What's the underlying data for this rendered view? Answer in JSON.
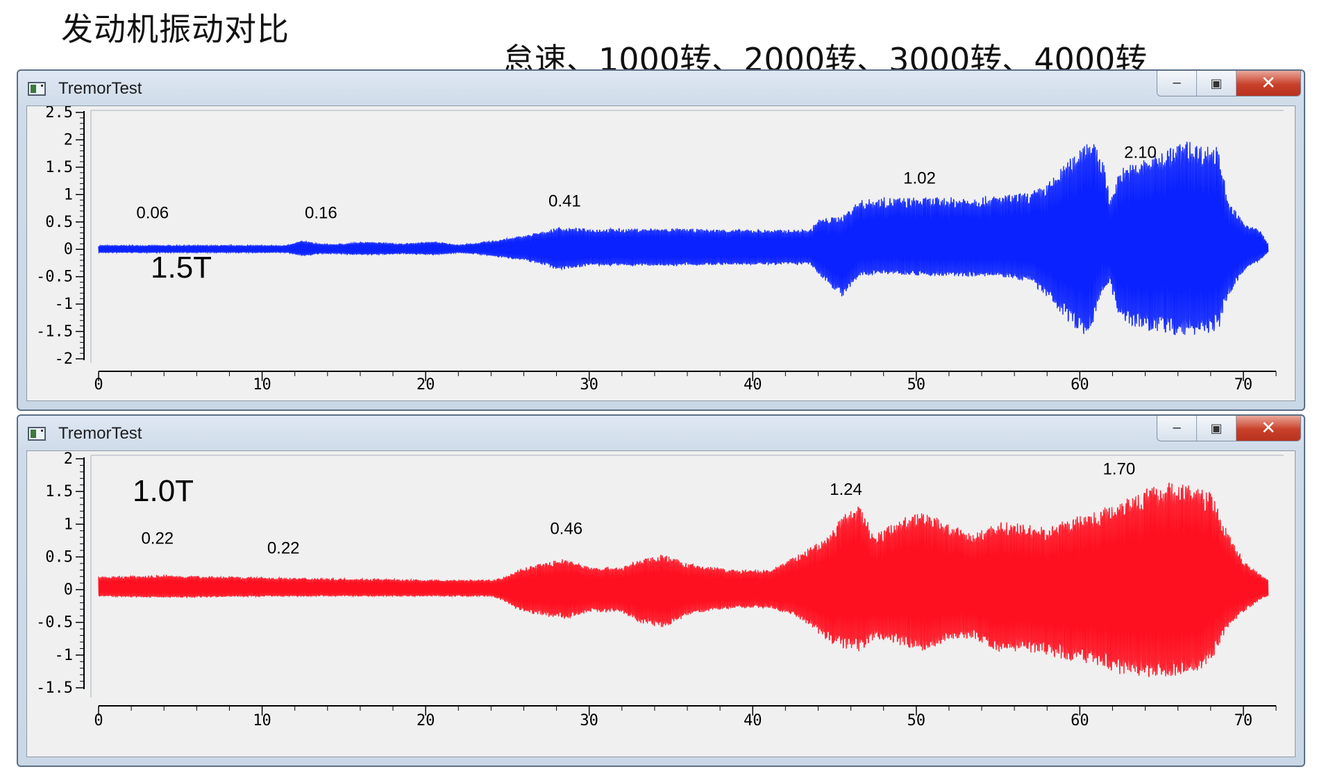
{
  "slide": {
    "title": "发动机振动对比",
    "subtitle": "怠速、1000转、2000转、3000转、4000转"
  },
  "windows": [
    {
      "title": "TremorTest",
      "controls": [
        "minimize-icon",
        "restore-icon",
        "close-icon"
      ]
    },
    {
      "title": "TremorTest",
      "controls": [
        "minimize-icon",
        "restore-icon",
        "close-icon"
      ]
    }
  ],
  "colors": {
    "series_1_5T": "#0a22ff",
    "series_1_0T": "#ff1020"
  },
  "chart_data": [
    {
      "type": "area",
      "label": "1.5T",
      "color": "#0a22ff",
      "xlim": [
        0,
        72
      ],
      "ylim": [
        -2,
        2.5
      ],
      "x_ticks": [
        0,
        10,
        20,
        30,
        40,
        50,
        60,
        70
      ],
      "y_ticks": [
        2.5,
        2,
        1.5,
        1,
        0.5,
        0,
        -0.5,
        -1,
        -1.5,
        -2
      ],
      "envelope": {
        "x": [
          0,
          11.5,
          12.5,
          13.5,
          14.5,
          16.5,
          18.5,
          20.5,
          22,
          23,
          24,
          26,
          27.5,
          28,
          30,
          35,
          40,
          43.5,
          44,
          45.5,
          46.5,
          48,
          52,
          55,
          57,
          58,
          59.5,
          60.5,
          61.5,
          61.8,
          62.5,
          63.5,
          65,
          66.5,
          67.5,
          68.5,
          69,
          70,
          71,
          71.5
        ],
        "upper": [
          0.07,
          0.07,
          0.16,
          0.1,
          0.09,
          0.14,
          0.1,
          0.14,
          0.08,
          0.11,
          0.15,
          0.25,
          0.35,
          0.4,
          0.38,
          0.38,
          0.36,
          0.36,
          0.55,
          0.62,
          0.9,
          0.95,
          0.95,
          0.98,
          1.05,
          1.2,
          1.7,
          2.1,
          1.6,
          0.9,
          1.5,
          1.6,
          1.8,
          2.0,
          1.9,
          1.9,
          0.9,
          0.5,
          0.35,
          0.1
        ],
        "lower": [
          -0.06,
          -0.06,
          -0.12,
          -0.08,
          -0.08,
          -0.1,
          -0.08,
          -0.1,
          -0.06,
          -0.08,
          -0.12,
          -0.2,
          -0.3,
          -0.38,
          -0.3,
          -0.3,
          -0.28,
          -0.28,
          -0.45,
          -0.9,
          -0.5,
          -0.45,
          -0.5,
          -0.5,
          -0.6,
          -0.9,
          -1.4,
          -1.6,
          -0.7,
          -0.6,
          -1.35,
          -1.45,
          -1.55,
          -1.6,
          -1.55,
          -1.5,
          -0.9,
          -0.4,
          -0.2,
          -0.05
        ]
      },
      "annotations": [
        {
          "x": 3.3,
          "y": 0.57,
          "text": "0.06"
        },
        {
          "x": 13.6,
          "y": 0.57,
          "text": "0.16"
        },
        {
          "x": 28.5,
          "y": 0.78,
          "text": "0.41"
        },
        {
          "x": 50.2,
          "y": 1.2,
          "text": "1.02"
        },
        {
          "x": 63.7,
          "y": 1.67,
          "text": "2.10"
        }
      ]
    },
    {
      "type": "area",
      "label": "1.0T",
      "color": "#ff1020",
      "xlim": [
        0,
        72
      ],
      "ylim": [
        -1.5,
        2
      ],
      "x_ticks": [
        0,
        10,
        20,
        30,
        40,
        50,
        60,
        70
      ],
      "y_ticks": [
        2,
        1.5,
        1,
        0.5,
        0,
        -0.5,
        -1,
        -1.5
      ],
      "envelope": {
        "x": [
          0,
          4,
          8,
          12,
          16,
          20,
          24,
          25,
          25.5,
          27,
          28.5,
          30,
          32,
          33,
          34.5,
          36,
          37.5,
          39,
          41,
          42.5,
          43.5,
          44.5,
          45.5,
          46.5,
          47.5,
          49,
          50.5,
          52,
          53.5,
          55,
          56.5,
          58,
          59.5,
          61,
          62.5,
          64,
          65.5,
          67,
          68,
          69,
          70,
          71,
          71.5
        ],
        "upper": [
          0.2,
          0.22,
          0.2,
          0.18,
          0.17,
          0.15,
          0.15,
          0.2,
          0.3,
          0.4,
          0.48,
          0.35,
          0.35,
          0.45,
          0.55,
          0.4,
          0.35,
          0.3,
          0.3,
          0.5,
          0.65,
          0.8,
          1.15,
          1.3,
          0.85,
          1.1,
          1.2,
          1.0,
          0.85,
          1.05,
          1.0,
          0.95,
          1.1,
          1.2,
          1.4,
          1.55,
          1.65,
          1.6,
          1.5,
          0.9,
          0.45,
          0.25,
          0.15
        ],
        "lower": [
          -0.1,
          -0.12,
          -0.11,
          -0.1,
          -0.1,
          -0.1,
          -0.1,
          -0.2,
          -0.3,
          -0.4,
          -0.45,
          -0.35,
          -0.35,
          -0.5,
          -0.6,
          -0.4,
          -0.32,
          -0.28,
          -0.28,
          -0.4,
          -0.55,
          -0.8,
          -0.9,
          -0.95,
          -0.75,
          -0.85,
          -0.95,
          -0.8,
          -0.75,
          -0.95,
          -0.95,
          -1.0,
          -1.1,
          -1.15,
          -1.3,
          -1.35,
          -1.35,
          -1.3,
          -1.1,
          -0.6,
          -0.35,
          -0.15,
          -0.1
        ]
      },
      "annotations": [
        {
          "x": 3.6,
          "y": 0.7,
          "text": "0.22"
        },
        {
          "x": 11.3,
          "y": 0.55,
          "text": "0.22"
        },
        {
          "x": 28.6,
          "y": 0.85,
          "text": "0.46"
        },
        {
          "x": 45.7,
          "y": 1.45,
          "text": "1.24"
        },
        {
          "x": 62.4,
          "y": 1.76,
          "text": "1.70"
        }
      ]
    }
  ]
}
